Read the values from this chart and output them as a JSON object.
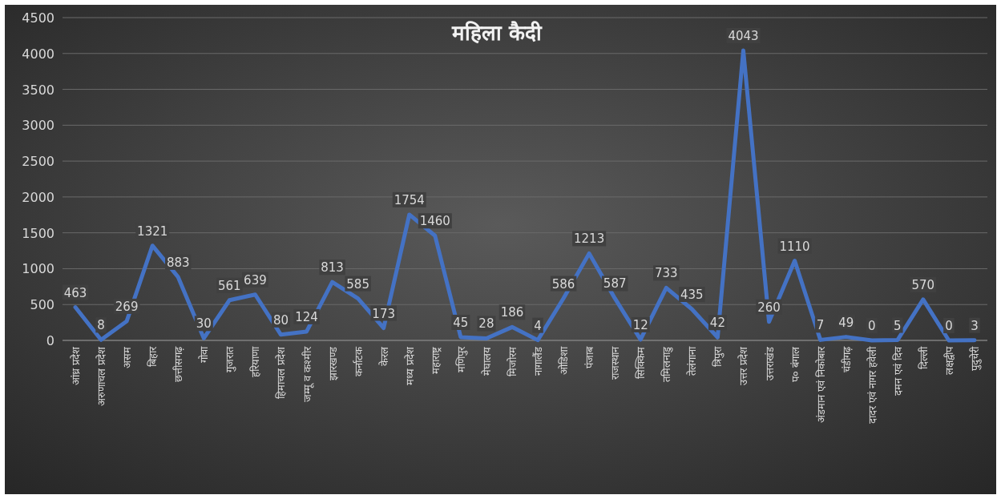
{
  "chart_data": {
    "type": "line",
    "title": "महिला कैदी",
    "categories": [
      "आंध्र प्रदेश",
      "अरुणाचल प्रदेश",
      "असम",
      "बिहार",
      "छत्तीसगढ़",
      "गोवा",
      "गुजरात",
      "हरियाणा",
      "हिमाचल प्रदेश",
      "जम्मू व कश्मीर",
      "झारखण्ड",
      "कर्नाटक",
      "केरल",
      "मध्य प्रदेश",
      "महाराष्ट्र",
      "मणिपुर",
      "मेघालय",
      "मिजोरम",
      "नागालैंड",
      "ओडिशा",
      "पंजाब",
      "राजस्थान",
      "सिक्किम",
      "तमिलनाडु",
      "तेलंगाना",
      "त्रिपुरा",
      "उत्तर प्रदेश",
      "उत्तराखंड",
      "प० बंगाल",
      "अंडमान एवं निकोबार",
      "चंडीगढ़",
      "दादर एवं नागर हवेली",
      "दमन एवं दिव",
      "दिल्ली",
      "लक्षद्वीप",
      "पुदुचेरी"
    ],
    "values": [
      463,
      8,
      269,
      1321,
      883,
      30,
      561,
      639,
      80,
      124,
      813,
      585,
      173,
      1754,
      1460,
      45,
      28,
      186,
      4,
      586,
      1213,
      587,
      12,
      733,
      435,
      42,
      4043,
      260,
      1110,
      7,
      49,
      0,
      5,
      570,
      0,
      3
    ],
    "color": "#4472c4",
    "ylim": [
      0,
      4500
    ],
    "yticks": [
      0,
      500,
      1000,
      1500,
      2000,
      2500,
      3000,
      3500,
      4000,
      4500
    ],
    "grid": "y",
    "data_labels": true,
    "marker": "none",
    "line_style": "solid"
  }
}
